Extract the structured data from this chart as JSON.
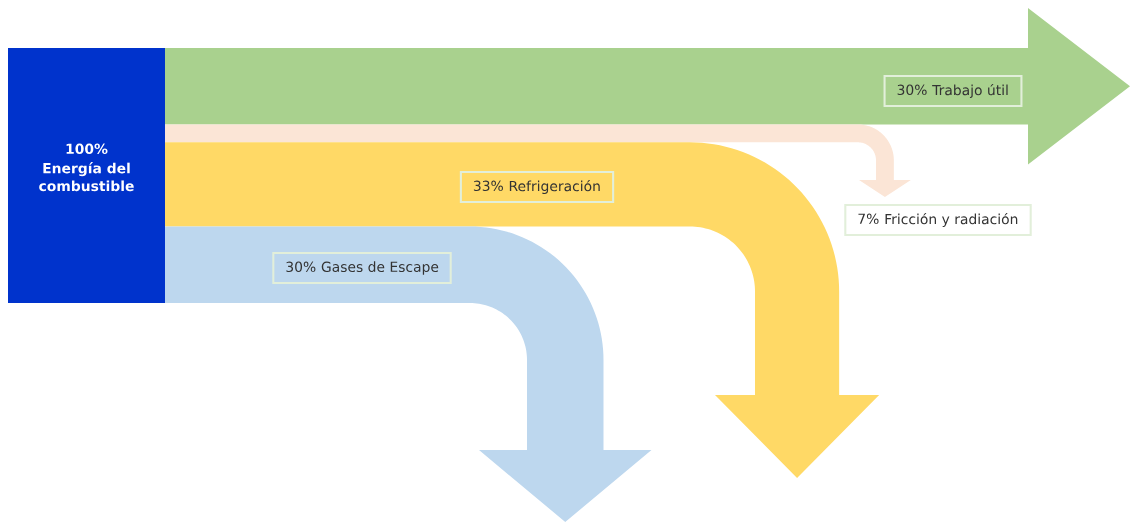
{
  "chart_data": {
    "type": "other",
    "categories": [
      "Energía del combustible",
      "Trabajo útil",
      "Fricción y radiación",
      "Refrigeración",
      "Gases de Escape"
    ],
    "values": [
      100,
      30,
      7,
      33,
      30
    ],
    "value_labels": [
      "100%",
      "30%",
      "7%",
      "33%",
      "30%"
    ],
    "colors": [
      "#0033cc",
      "#a9d18e",
      "#fbe5d6",
      "#ffd966",
      "#bdd7ee"
    ]
  }
}
